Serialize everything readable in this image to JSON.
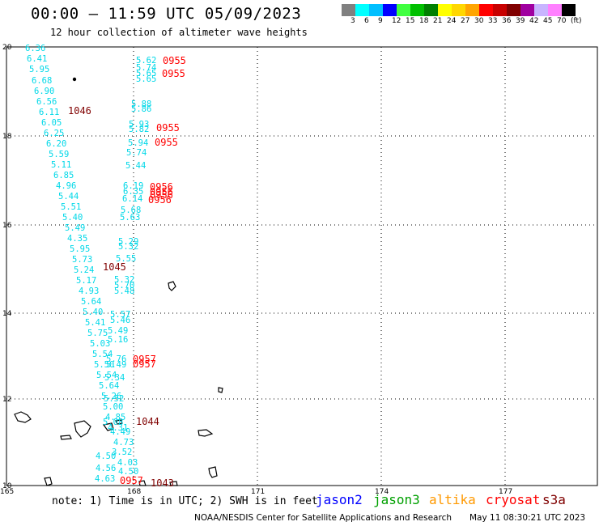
{
  "header": {
    "title": "00:00 – 11:59 UTC 05/09/2023",
    "subtitle": "12 hour collection of altimeter wave heights"
  },
  "legend": {
    "colors": [
      "#808080",
      "#00ffff",
      "#00bfff",
      "#0000ff",
      "#40ff40",
      "#00c000",
      "#008000",
      "#ffff00",
      "#ffd700",
      "#ffa500",
      "#ff0000",
      "#c80000",
      "#800000",
      "#a000a0",
      "#c8b4ff",
      "#ff80ff",
      "#000000"
    ],
    "labels": [
      "3",
      "6",
      "9",
      "12",
      "15",
      "18",
      "21",
      "24",
      "27",
      "30",
      "33",
      "36",
      "39",
      "42",
      "45",
      "70",
      "(ft)"
    ]
  },
  "axes": {
    "lat_labels": [
      "20",
      "18",
      "16",
      "14",
      "12",
      "10"
    ],
    "lon_labels": [
      "165",
      "168",
      "171",
      "174",
      "177"
    ]
  },
  "wave_heights": {
    "left_track": [
      "6.36",
      "6.41",
      "5.95",
      "6.68",
      "6.90",
      "6.56",
      "6.11",
      "6.05",
      "6.25",
      "6.20",
      "5.59",
      "5.11",
      "6.85",
      "4.96",
      "5.44",
      "5.51",
      "5.40",
      "5.49",
      "4.35",
      "5.95",
      "5.73",
      "5.24",
      "5.17",
      "4.93",
      "5.64",
      "5.40",
      "5.41",
      "5.75",
      "5.03",
      "5.54",
      "5.50",
      "5.54",
      "5.64",
      "5.26",
      "5.00",
      "4.85",
      "4.31"
    ],
    "right_track": [
      "5.62",
      "5.74",
      "5.65",
      "5.65",
      "5.88",
      "5.86",
      "5.93",
      "5.82",
      "5.94",
      "5.74",
      "5.44",
      "6.19",
      "6.35",
      "6.14",
      "5.68",
      "5.63",
      "5.29",
      "5.32",
      "5.55",
      "5.32",
      "5.70",
      "5.48",
      "5.57",
      "5.46",
      "5.49",
      "5.16",
      "5.76",
      "5.49",
      "5.34",
      "5.52",
      "5.08",
      "4.49",
      "4.73",
      "3.52",
      "4.03",
      "4.50",
      "4.56",
      "4.50",
      "4.63"
    ]
  },
  "time_labels": {
    "dark": [
      "1046",
      "1045",
      "1044",
      "1043"
    ],
    "red": [
      "0955",
      "0955",
      "0955",
      "0955",
      "0956",
      "0956",
      "0956",
      "0956",
      "0957",
      "0957",
      "0957"
    ]
  },
  "colors": {
    "wave_text": "#00d8e8",
    "time_dark": "#800000",
    "time_red": "#ff0000"
  },
  "footer": {
    "note": "note: 1) Time is in UTC; 2) SWH is in feet",
    "satellites": [
      {
        "name": "jason2",
        "color": "#0000ff"
      },
      {
        "name": "jason3",
        "color": "#00a000"
      },
      {
        "name": "altika",
        "color": "#ff9900"
      },
      {
        "name": "cryosat",
        "color": "#ff0000"
      },
      {
        "name": "s3a",
        "color": "#800000"
      }
    ],
    "credit": "NOAA/NESDIS Center for Satellite Applications and Research",
    "generated": "May 11 08:30:21 UTC 2023"
  }
}
